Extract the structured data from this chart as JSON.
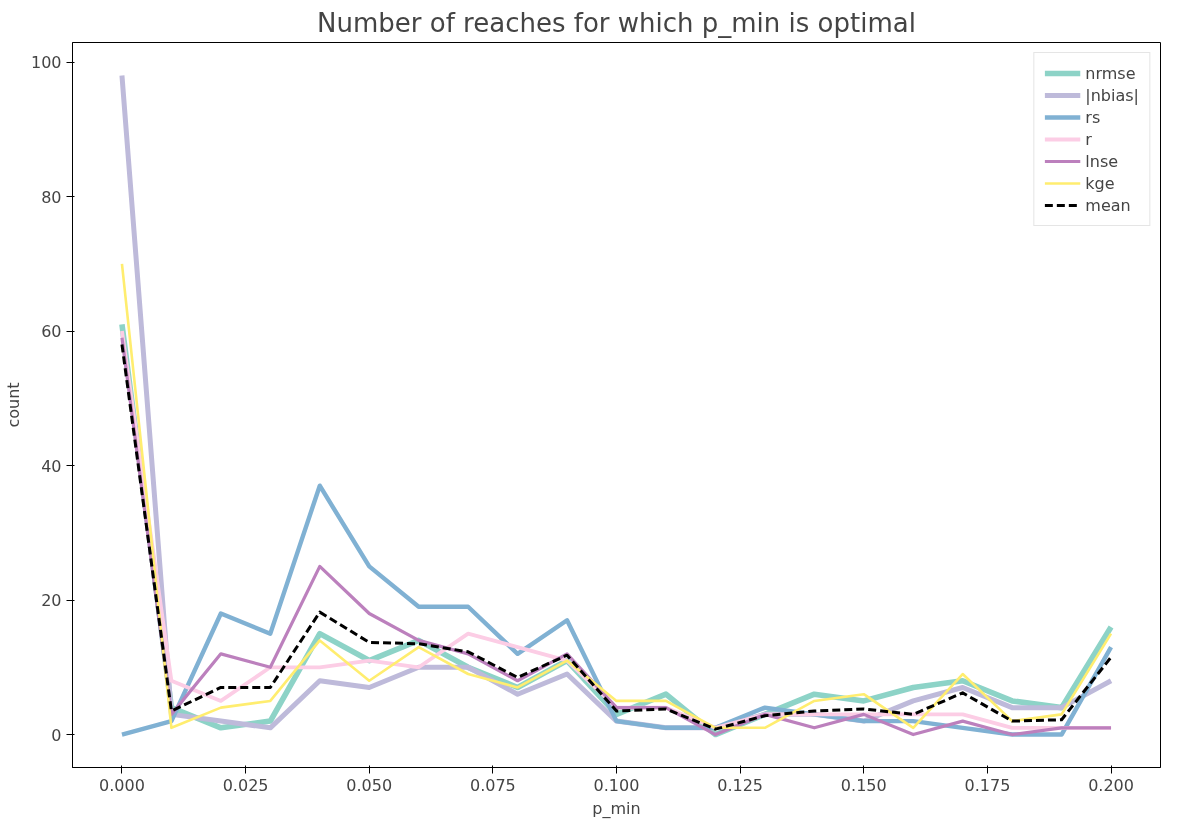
{
  "chart_data": {
    "type": "line",
    "title": "Number of reaches for which p_min is optimal",
    "xlabel": "p_min",
    "ylabel": "count",
    "x": [
      0.0,
      0.01,
      0.02,
      0.03,
      0.04,
      0.05,
      0.06,
      0.07,
      0.08,
      0.09,
      0.1,
      0.11,
      0.12,
      0.13,
      0.14,
      0.15,
      0.16,
      0.17,
      0.18,
      0.19,
      0.2
    ],
    "series": [
      {
        "name": "nrmse",
        "color": "#8dd3c7",
        "values": [
          61,
          4,
          1,
          2,
          15,
          11,
          14,
          10,
          7,
          11,
          3,
          6,
          0,
          3,
          6,
          5,
          7,
          8,
          5,
          4,
          16
        ]
      },
      {
        "name": "|nbias|",
        "color": "#bebada",
        "values": [
          98,
          3,
          2,
          1,
          8,
          7,
          10,
          10,
          6,
          9,
          2,
          1,
          1,
          3,
          3,
          2,
          5,
          7,
          4,
          4,
          8
        ]
      },
      {
        "name": "rs",
        "color": "#80b1d3",
        "values": [
          0,
          2,
          18,
          15,
          37,
          25,
          19,
          19,
          12,
          17,
          2,
          1,
          1,
          4,
          3,
          2,
          2,
          1,
          0,
          0,
          13
        ]
      },
      {
        "name": "r",
        "color": "#fccde5",
        "values": [
          60,
          8,
          5,
          10,
          10,
          11,
          10,
          15,
          13,
          11,
          4,
          4,
          1,
          3,
          3,
          3,
          3,
          3,
          1,
          1,
          1
        ]
      },
      {
        "name": "lnse",
        "color": "#bc80bd",
        "values": [
          59,
          3,
          12,
          10,
          25,
          18,
          14,
          12,
          8,
          12,
          4,
          4,
          0,
          3,
          1,
          3,
          0,
          2,
          0,
          1,
          1
        ]
      },
      {
        "name": "kge",
        "color": "#ffed6f",
        "values": [
          70,
          1,
          4,
          5,
          14,
          8,
          13,
          9,
          7,
          11,
          5,
          5,
          1,
          1,
          5,
          6,
          1,
          9,
          2,
          3,
          15
        ]
      },
      {
        "name": "mean",
        "color": "#000000",
        "line_style": "dashed",
        "values": [
          58,
          3.5,
          7,
          7,
          18.2,
          13.7,
          13.5,
          12.3,
          8.5,
          11.8,
          3.5,
          3.8,
          0.8,
          2.8,
          3.5,
          3.8,
          3,
          6.2,
          2,
          2.2,
          11.5
        ]
      }
    ],
    "xlim": [
      -0.01,
      0.21
    ],
    "ylim": [
      -4.9,
      102.9
    ],
    "xticks": [
      {
        "value": 0,
        "label": "0.000"
      },
      {
        "value": 0.025,
        "label": "0.025"
      },
      {
        "value": 0.05,
        "label": "0.050"
      },
      {
        "value": 0.075,
        "label": "0.075"
      },
      {
        "value": 0.1,
        "label": "0.100"
      },
      {
        "value": 0.125,
        "label": "0.125"
      },
      {
        "value": 0.15,
        "label": "0.150"
      },
      {
        "value": 0.175,
        "label": "0.175"
      },
      {
        "value": 0.2,
        "label": "0.200"
      }
    ],
    "yticks": [
      0,
      20,
      40,
      60,
      80,
      100
    ],
    "legend": "top right",
    "line_style": "solid"
  }
}
